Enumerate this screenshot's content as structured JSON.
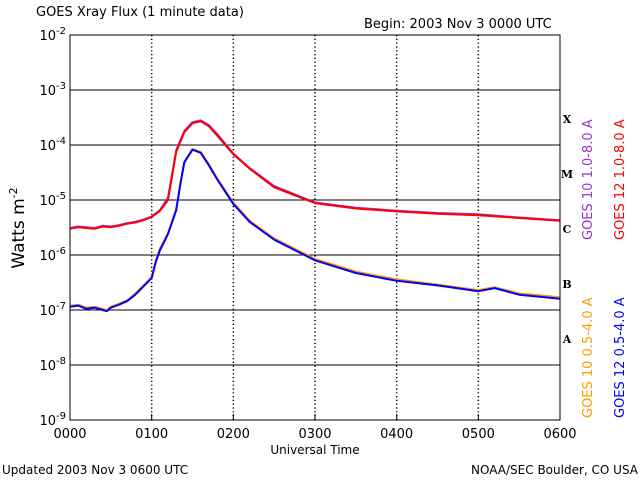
{
  "chart_data": {
    "type": "line",
    "title": "GOES Xray Flux (1 minute data)",
    "begin_label": "Begin: 2003 Nov 3 0000 UTC",
    "xlabel": "Universal Time",
    "ylabel_main": "Watts m",
    "ylabel_exp": "-2",
    "x_ticks": [
      "0000",
      "0100",
      "0200",
      "0300",
      "0400",
      "0500",
      "0600"
    ],
    "xlim_hours": [
      0,
      6
    ],
    "y_scale": "log",
    "ylim": [
      1e-09,
      0.01
    ],
    "y_ticks": [
      {
        "value": 0.01,
        "exp": "-2"
      },
      {
        "value": 0.001,
        "exp": "-3"
      },
      {
        "value": 0.0001,
        "exp": "-4"
      },
      {
        "value": 1e-05,
        "exp": "-5"
      },
      {
        "value": 1e-06,
        "exp": "-6"
      },
      {
        "value": 1e-07,
        "exp": "-7"
      },
      {
        "value": 1e-08,
        "exp": "-8"
      },
      {
        "value": 1e-09,
        "exp": "-9"
      }
    ],
    "y_tick_base": "10",
    "flare_classes": [
      {
        "label": "X",
        "value": 0.0003
      },
      {
        "label": "M",
        "value": 3e-05
      },
      {
        "label": "C",
        "value": 3e-06
      },
      {
        "label": "B",
        "value": 3e-07
      },
      {
        "label": "A",
        "value": 3e-08
      }
    ],
    "series": [
      {
        "name": "GOES 10 1.0-8.0 A",
        "color": "#9933cc",
        "x_hours": [
          0.0,
          0.1,
          0.2,
          0.3,
          0.4,
          0.5,
          0.6,
          0.7,
          0.8,
          0.9,
          1.0,
          1.1,
          1.2,
          1.3,
          1.4,
          1.5,
          1.6,
          1.7,
          1.8,
          2.0,
          2.2,
          2.5,
          3.0,
          3.5,
          4.0,
          4.5,
          5.0,
          5.5,
          6.0
        ],
        "values": [
          3.1e-06,
          3.3e-06,
          3.2e-06,
          3.1e-06,
          3.4e-06,
          3.3e-06,
          3.5e-06,
          3.8e-06,
          4e-06,
          4.4e-06,
          5e-06,
          6.5e-06,
          1.1e-05,
          8e-05,
          0.00018,
          0.00026,
          0.00028,
          0.00023,
          0.00016,
          7e-05,
          3.8e-05,
          1.8e-05,
          9e-06,
          7.2e-06,
          6.4e-06,
          5.8e-06,
          5.5e-06,
          4.8e-06,
          4.3e-06
        ]
      },
      {
        "name": "GOES 12 1.0-8.0 A",
        "color": "#ff0000",
        "x_hours": [
          0.0,
          0.1,
          0.2,
          0.3,
          0.4,
          0.5,
          0.6,
          0.7,
          0.8,
          0.9,
          1.0,
          1.1,
          1.2,
          1.3,
          1.4,
          1.5,
          1.6,
          1.7,
          1.8,
          2.0,
          2.2,
          2.5,
          3.0,
          3.5,
          4.0,
          4.5,
          5.0,
          5.5,
          6.0
        ],
        "values": [
          3e-06,
          3.2e-06,
          3.1e-06,
          3e-06,
          3.3e-06,
          3.2e-06,
          3.4e-06,
          3.7e-06,
          3.9e-06,
          4.3e-06,
          4.9e-06,
          6.3e-06,
          1e-05,
          7.5e-05,
          0.00017,
          0.00025,
          0.00027,
          0.00022,
          0.00015,
          6.8e-05,
          3.7e-05,
          1.7e-05,
          8.8e-06,
          7e-06,
          6.2e-06,
          5.6e-06,
          5.3e-06,
          4.7e-06,
          4.2e-06
        ]
      },
      {
        "name": "GOES 10 0.5-4.0 A",
        "color": "#ff9900",
        "x_hours": [
          0.0,
          0.1,
          0.2,
          0.3,
          0.4,
          0.45,
          0.5,
          0.6,
          0.7,
          0.8,
          0.9,
          1.0,
          1.05,
          1.1,
          1.2,
          1.3,
          1.35,
          1.4,
          1.5,
          1.6,
          1.7,
          1.8,
          2.0,
          2.2,
          2.5,
          3.0,
          3.5,
          4.0,
          4.5,
          5.0,
          5.2,
          5.5,
          6.0
        ],
        "values": [
          1.2e-07,
          1.25e-07,
          1.1e-07,
          1.15e-07,
          1.05e-07,
          1e-07,
          1.15e-07,
          1.3e-07,
          1.5e-07,
          2e-07,
          2.8e-07,
          4e-07,
          8e-07,
          1.3e-06,
          2.5e-06,
          7e-06,
          2e-05,
          5e-05,
          8.5e-05,
          7.5e-05,
          4.5e-05,
          2.5e-05,
          9e-06,
          4.2e-06,
          2e-06,
          8.5e-07,
          5e-07,
          3.6e-07,
          2.9e-07,
          2.3e-07,
          2.6e-07,
          2e-07,
          1.7e-07
        ]
      },
      {
        "name": "GOES 12 0.5-4.0 A",
        "color": "#0000ff",
        "x_hours": [
          0.0,
          0.1,
          0.2,
          0.3,
          0.4,
          0.45,
          0.5,
          0.6,
          0.7,
          0.8,
          0.9,
          1.0,
          1.05,
          1.1,
          1.2,
          1.3,
          1.35,
          1.4,
          1.5,
          1.6,
          1.7,
          1.8,
          2.0,
          2.2,
          2.5,
          3.0,
          3.5,
          4.0,
          4.5,
          5.0,
          5.2,
          5.5,
          6.0
        ],
        "values": [
          1.15e-07,
          1.2e-07,
          1.05e-07,
          1.1e-07,
          1e-07,
          9.5e-08,
          1.1e-07,
          1.25e-07,
          1.45e-07,
          1.9e-07,
          2.7e-07,
          3.8e-07,
          7.5e-07,
          1.2e-06,
          2.4e-06,
          6.5e-06,
          1.9e-05,
          4.8e-05,
          8.2e-05,
          7.2e-05,
          4.3e-05,
          2.4e-05,
          8.5e-06,
          4e-06,
          1.9e-06,
          8e-07,
          4.7e-07,
          3.4e-07,
          2.8e-07,
          2.2e-07,
          2.5e-07,
          1.9e-07,
          1.6e-07
        ]
      }
    ],
    "grid": true,
    "legend_position": "right, vertical"
  },
  "footer": {
    "updated": "Updated 2003 Nov  3 0600 UTC",
    "source": "NOAA/SEC Boulder, CO USA"
  }
}
